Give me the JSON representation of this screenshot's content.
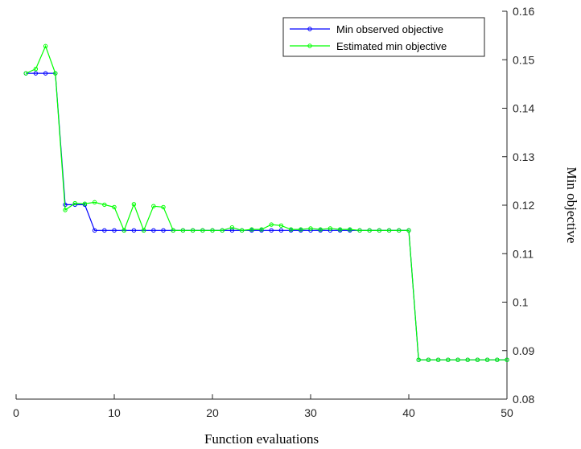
{
  "chart_data": {
    "type": "line",
    "xlabel": "Function evaluations",
    "ylabel": "Min objective",
    "xlim": [
      0,
      50
    ],
    "ylim": [
      0.08,
      0.16
    ],
    "y_axis_location": "right",
    "x_ticks": [
      0,
      10,
      20,
      30,
      40,
      50
    ],
    "y_ticks": [
      0.08,
      0.09,
      0.1,
      0.11,
      0.12,
      0.13,
      0.14,
      0.15,
      0.16
    ],
    "x_tick_labels": [
      "0",
      "10",
      "20",
      "30",
      "40",
      "50"
    ],
    "y_tick_labels": [
      "0.08",
      "0.09",
      "0.1",
      "0.11",
      "0.12",
      "0.13",
      "0.14",
      "0.15",
      "0.16"
    ],
    "grid": false,
    "legend_position": "top-right",
    "x": [
      1,
      2,
      3,
      4,
      5,
      6,
      7,
      8,
      9,
      10,
      11,
      12,
      13,
      14,
      15,
      16,
      17,
      18,
      19,
      20,
      21,
      22,
      23,
      24,
      25,
      26,
      27,
      28,
      29,
      30,
      31,
      32,
      33,
      34,
      35,
      36,
      37,
      38,
      39,
      40,
      41,
      42,
      43,
      44,
      45,
      46,
      47,
      48,
      49,
      50
    ],
    "series": [
      {
        "name": "Min observed objective",
        "color": "#0000ff",
        "values": [
          0.1472,
          0.1472,
          0.1472,
          0.1472,
          0.1201,
          0.1201,
          0.1201,
          0.1148,
          0.1148,
          0.1148,
          0.1148,
          0.1148,
          0.1148,
          0.1148,
          0.1148,
          0.1148,
          0.1148,
          0.1148,
          0.1148,
          0.1148,
          0.1148,
          0.1148,
          0.1148,
          0.1148,
          0.1148,
          0.1148,
          0.1148,
          0.1148,
          0.1148,
          0.1148,
          0.1148,
          0.1148,
          0.1148,
          0.1148,
          0.1148,
          0.1148,
          0.1148,
          0.1148,
          0.1148,
          0.1148,
          0.0881,
          0.0881,
          0.0881,
          0.0881,
          0.0881,
          0.0881,
          0.0881,
          0.0881,
          0.0881,
          0.0881
        ]
      },
      {
        "name": "Estimated min objective",
        "color": "#00ff00",
        "values": [
          0.1472,
          0.1481,
          0.1528,
          0.1472,
          0.119,
          0.1204,
          0.1203,
          0.1206,
          0.1201,
          0.1196,
          0.1148,
          0.1202,
          0.1148,
          0.1198,
          0.1196,
          0.1148,
          0.1148,
          0.1148,
          0.1148,
          0.1148,
          0.1148,
          0.1154,
          0.1148,
          0.115,
          0.115,
          0.116,
          0.1158,
          0.115,
          0.115,
          0.1152,
          0.115,
          0.1152,
          0.115,
          0.115,
          0.1148,
          0.1148,
          0.1148,
          0.1148,
          0.1148,
          0.1148,
          0.0881,
          0.0881,
          0.0881,
          0.0881,
          0.0881,
          0.0881,
          0.0881,
          0.0881,
          0.0881,
          0.0881
        ]
      }
    ]
  }
}
